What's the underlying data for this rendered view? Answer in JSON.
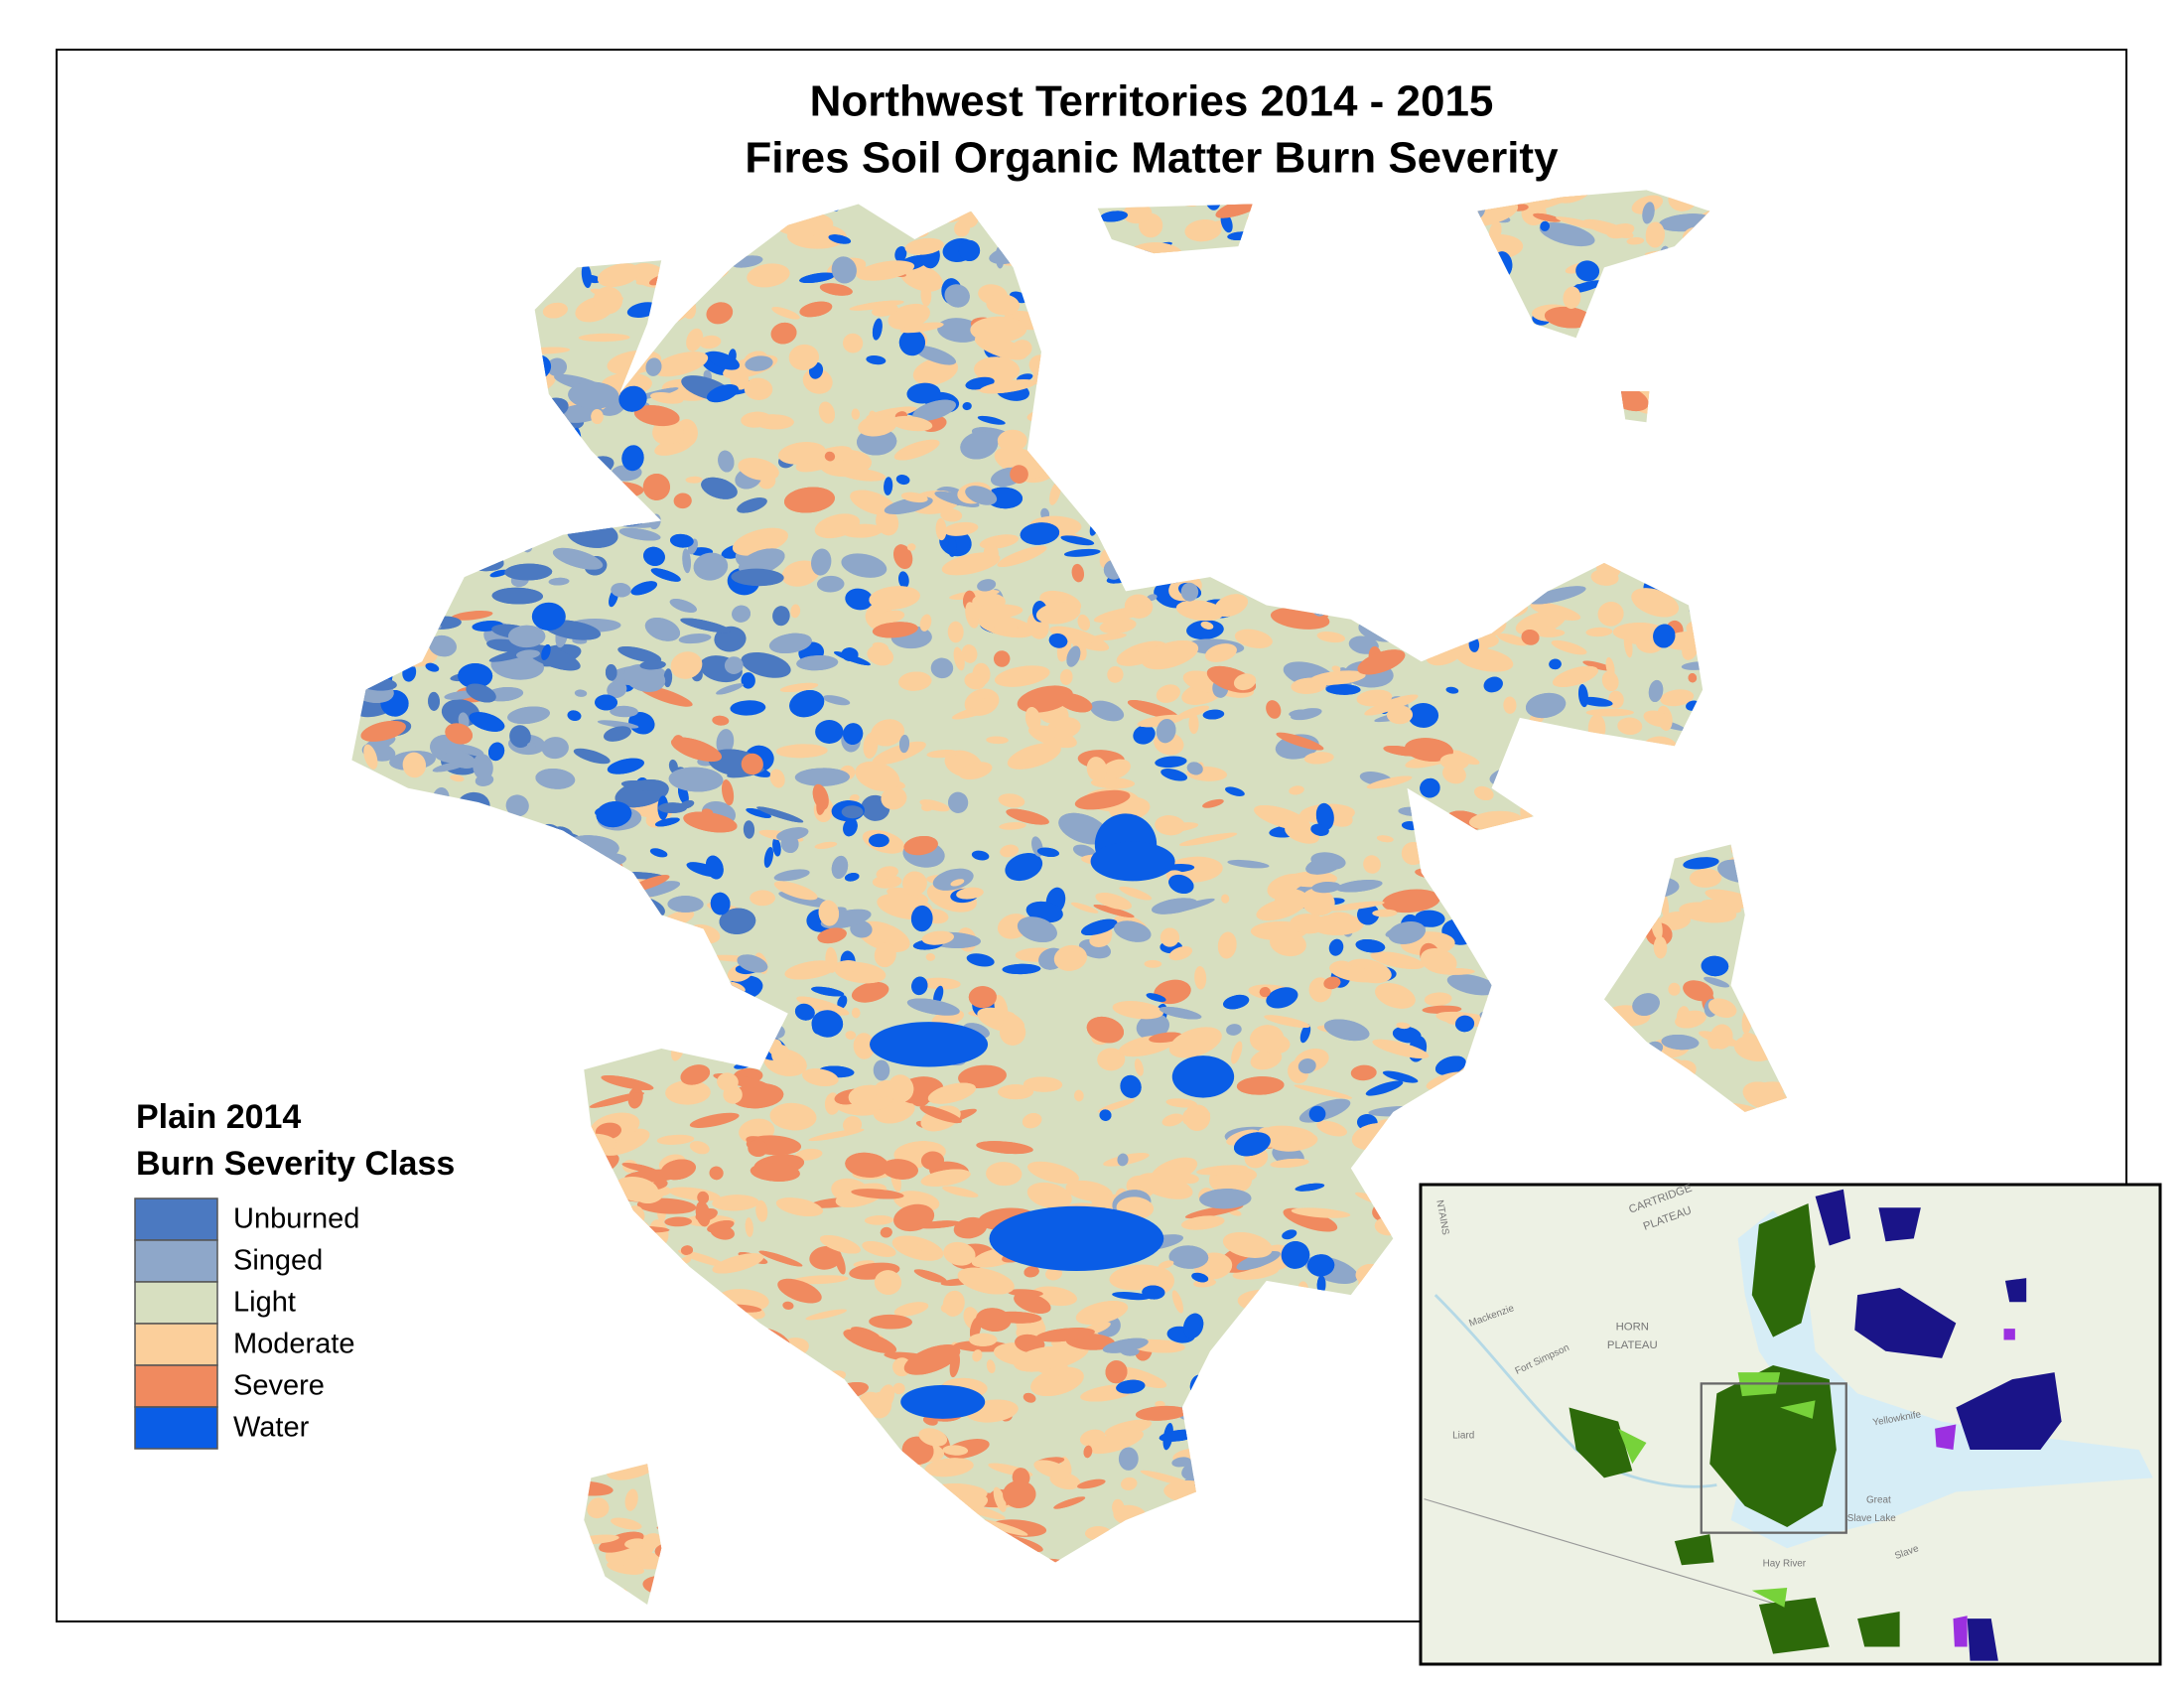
{
  "title": {
    "line1": "Northwest Territories 2014 - 2015",
    "line2": "Fires Soil Organic Matter Burn Severity"
  },
  "legend": {
    "title1": "Plain 2014",
    "title2": "Burn Severity Class",
    "items": [
      {
        "label": "Unburned",
        "color": "#4b79c1"
      },
      {
        "label": "Singed",
        "color": "#8ea7c9"
      },
      {
        "label": "Light",
        "color": "#d7dfc0"
      },
      {
        "label": "Moderate",
        "color": "#fbcf9b"
      },
      {
        "label": "Severe",
        "color": "#f08a5f"
      },
      {
        "label": "Water",
        "color": "#0a5de6"
      }
    ]
  },
  "inset": {
    "labels": [
      "CARTRIDGE",
      "PLATEAU",
      "HORN",
      "PLATEAU",
      "Fort Simpson",
      "Yellowknife",
      "Great",
      "Slave Lake",
      "Hay River",
      "Mackenzie",
      "Liard",
      "Slave",
      "NTAINS"
    ]
  }
}
